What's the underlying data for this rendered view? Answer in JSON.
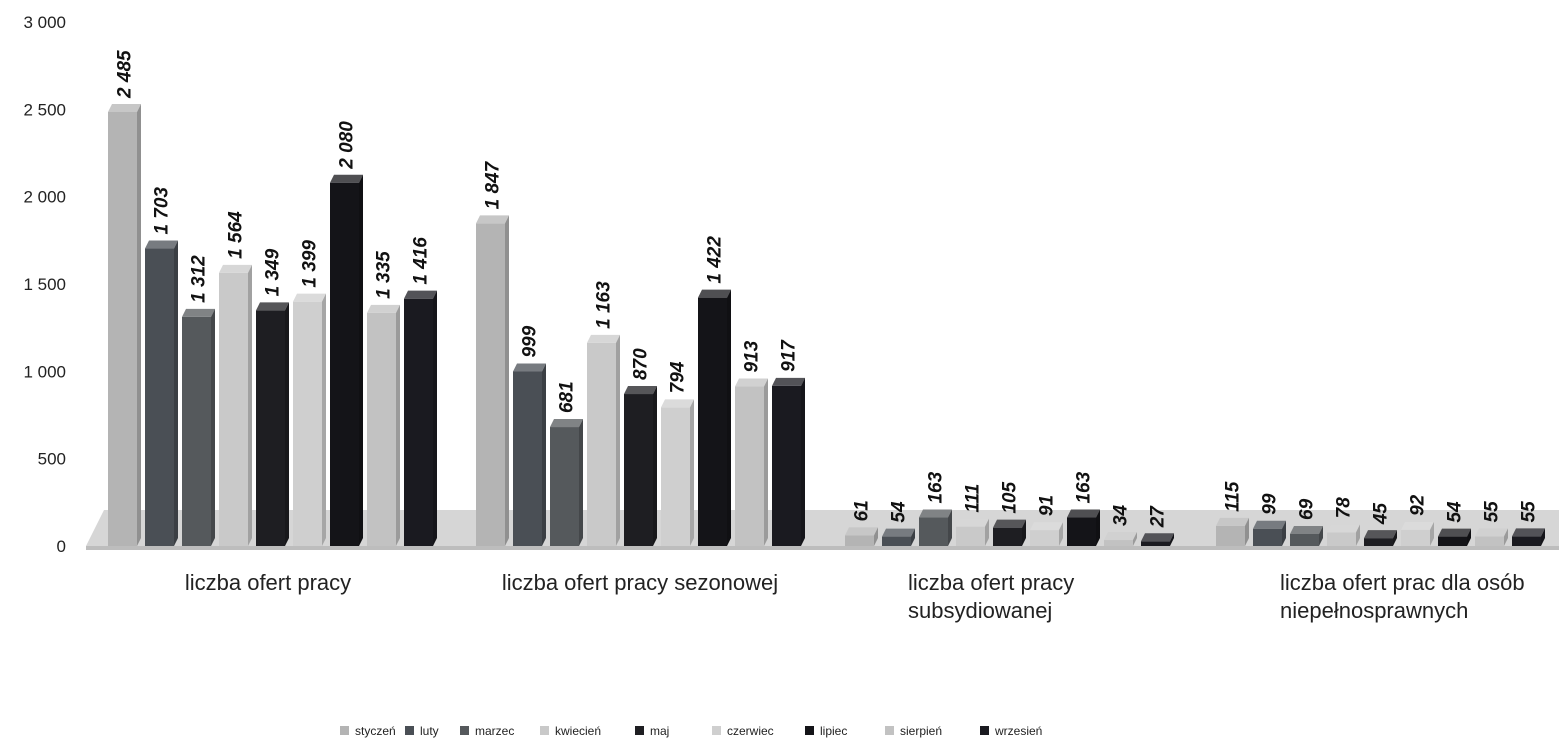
{
  "chart_data": {
    "type": "bar",
    "style": "3d-clustered",
    "categories": [
      "liczba ofert pracy",
      "liczba ofert pracy sezonowej",
      "liczba ofert pracy subsydiowanej",
      "liczba ofert prac dla osób niepełnosprawnych"
    ],
    "category_label_lines": [
      [
        "liczba ofert pracy"
      ],
      [
        "liczba ofert pracy sezonowej"
      ],
      [
        "liczba ofert pracy",
        "subsydiowanej"
      ],
      [
        "liczba ofert prac dla osób",
        "niepełnosprawnych"
      ]
    ],
    "series": [
      {
        "name": "styczeń",
        "color": "#b4b4b4",
        "values": [
          2485,
          1847,
          61,
          115
        ],
        "labels": [
          "2 485",
          "1 847",
          "61",
          "115"
        ]
      },
      {
        "name": "luty",
        "color": "#4a4f55",
        "values": [
          1703,
          999,
          54,
          99
        ],
        "labels": [
          "1 703",
          "999",
          "54",
          "99"
        ]
      },
      {
        "name": "marzec",
        "color": "#55595c",
        "values": [
          1312,
          681,
          163,
          69
        ],
        "labels": [
          "1 312",
          "681",
          "163",
          "69"
        ]
      },
      {
        "name": "kwiecień",
        "color": "#c9c9c9",
        "values": [
          1564,
          1163,
          111,
          78
        ],
        "labels": [
          "1 564",
          "1 163",
          "111",
          "78"
        ]
      },
      {
        "name": "maj",
        "color": "#1e1e22",
        "values": [
          1349,
          870,
          105,
          45
        ],
        "labels": [
          "1 349",
          "870",
          "105",
          "45"
        ]
      },
      {
        "name": "czerwiec",
        "color": "#cfcfcf",
        "values": [
          1399,
          794,
          91,
          92
        ],
        "labels": [
          "1 399",
          "794",
          "91",
          "92"
        ]
      },
      {
        "name": "lipiec",
        "color": "#141418",
        "values": [
          2080,
          1422,
          163,
          54
        ],
        "labels": [
          "2 080",
          "1 422",
          "163",
          "54"
        ]
      },
      {
        "name": "sierpień",
        "color": "#c2c2c2",
        "values": [
          1335,
          913,
          34,
          55
        ],
        "labels": [
          "1 335",
          "913",
          "34",
          "55"
        ]
      },
      {
        "name": "wrzesień",
        "color": "#1a1a20",
        "values": [
          1416,
          917,
          27,
          55
        ],
        "labels": [
          "1 416",
          "917",
          "27",
          "55"
        ]
      }
    ],
    "y_ticks": [
      0,
      500,
      1000,
      1500,
      2000,
      2500,
      3000
    ],
    "y_tick_labels": [
      "0",
      "500",
      "1 000",
      "1 500",
      "2 000",
      "2 500",
      "3 000"
    ],
    "ylim": [
      0,
      3000
    ],
    "grid": false,
    "legend": "bottom",
    "title": "",
    "xlabel": "",
    "ylabel": ""
  }
}
